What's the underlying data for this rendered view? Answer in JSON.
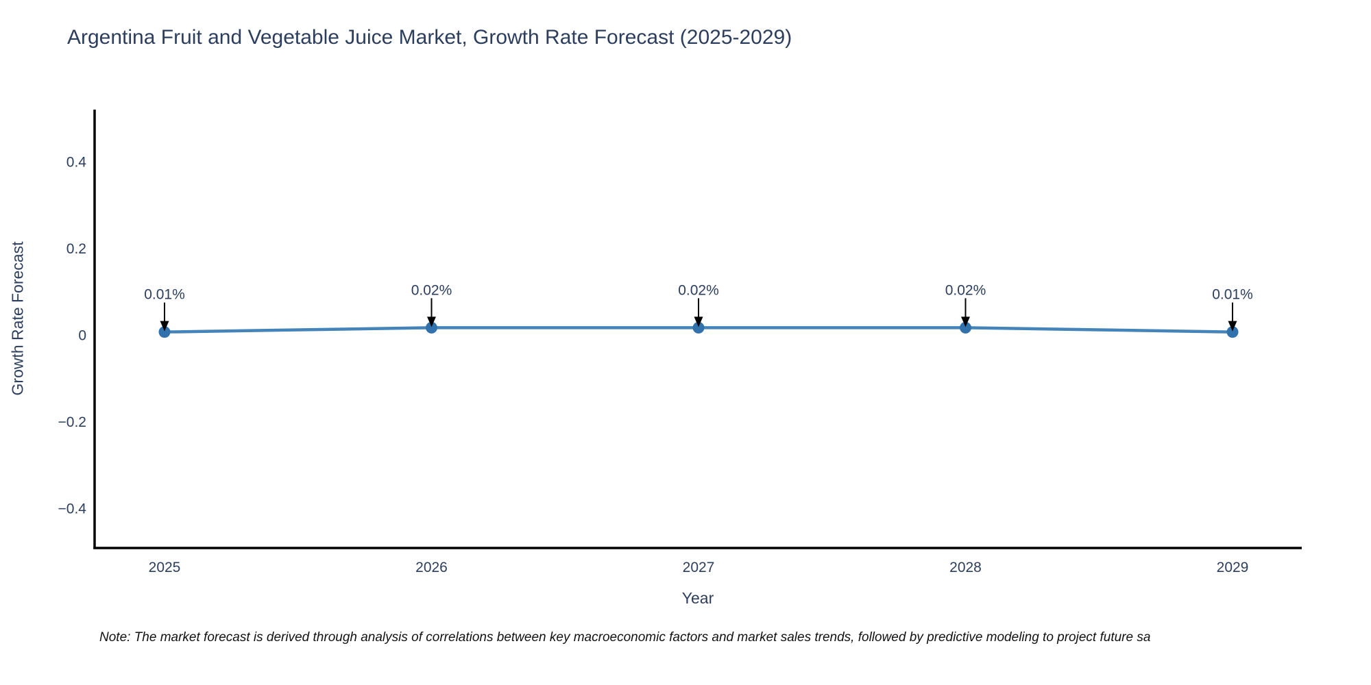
{
  "chart_data": {
    "type": "line",
    "title": "Argentina Fruit and Vegetable Juice Market, Growth Rate Forecast (2025-2029)",
    "xlabel": "Year",
    "ylabel": "Growth Rate Forecast",
    "categories": [
      "2025",
      "2026",
      "2027",
      "2028",
      "2029"
    ],
    "series": [
      {
        "name": "Growth Rate Forecast",
        "values": [
          0.01,
          0.02,
          0.02,
          0.02,
          0.01
        ]
      }
    ],
    "point_labels": [
      "0.01%",
      "0.02%",
      "0.02%",
      "0.02%",
      "0.01%"
    ],
    "y_ticks": [
      0.4,
      0.2,
      0,
      -0.2,
      -0.4
    ],
    "y_tick_labels": [
      "0.4",
      "0.2",
      "0",
      "−0.2",
      "−0.4"
    ],
    "ylim": [
      -0.49,
      0.52
    ],
    "grid": false,
    "legend_position": "none",
    "colors": {
      "line": "#4484b9",
      "marker": "#3172ad",
      "axis": "#000000",
      "text": "#2c3e5d",
      "arrow": "#000000",
      "note_text": "#111111"
    }
  },
  "note": {
    "text": "Note: The market forecast is derived through analysis of correlations between key macroeconomic factors and market sales trends, followed by predictive modeling to project future sa"
  }
}
